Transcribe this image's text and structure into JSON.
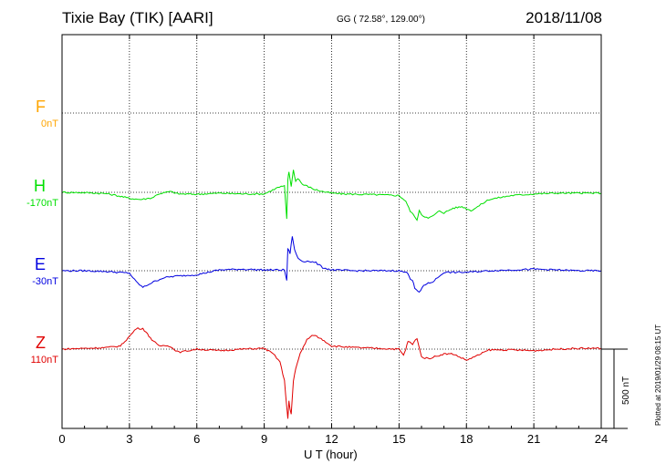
{
  "header": {
    "station": "Tixie Bay (TIK)  [AARI]",
    "coords": "GG ( 72.58°, 129.00°)",
    "date": "2018/11/08"
  },
  "footer": {
    "plotted": "Plotted at 2019/01/29 08:15 UT",
    "scale_label": "500 nT"
  },
  "chart_data": {
    "type": "line",
    "xlabel": "U T (hour)",
    "xlim": [
      0,
      24
    ],
    "xticks": [
      0,
      3,
      6,
      9,
      12,
      15,
      18,
      21,
      24
    ],
    "grid": true,
    "scale_bar_nT": 500,
    "series": [
      {
        "name": "F",
        "offset": "0nT",
        "color": "#ffa500",
        "values": []
      },
      {
        "name": "H",
        "offset": "-170nT",
        "color": "#00e000",
        "x": [
          0,
          1,
          2,
          2.6,
          3,
          3.5,
          4,
          4.3,
          4.8,
          5.2,
          6,
          7,
          8,
          9,
          9.6,
          9.9,
          10,
          10.05,
          10.1,
          10.2,
          10.3,
          10.4,
          10.5,
          10.7,
          10.9,
          11.2,
          11.6,
          12,
          12.5,
          13,
          14,
          15,
          15.3,
          15.5,
          15.7,
          15.8,
          15.9,
          16,
          16.3,
          16.6,
          16.8,
          17,
          17.4,
          17.8,
          18.2,
          18.5,
          19,
          20,
          21,
          22,
          23,
          24
        ],
        "y": [
          0,
          -2,
          -8,
          -25,
          -38,
          -45,
          -35,
          -10,
          5,
          -10,
          -12,
          -5,
          -10,
          -10,
          30,
          40,
          -170,
          80,
          130,
          40,
          140,
          70,
          90,
          50,
          40,
          20,
          5,
          -5,
          -10,
          -12,
          -15,
          -20,
          -55,
          -120,
          -150,
          -180,
          -110,
          -140,
          -165,
          -140,
          -115,
          -130,
          -100,
          -90,
          -115,
          -90,
          -45,
          -20,
          -10,
          -5,
          -5,
          -5
        ]
      },
      {
        "name": "E",
        "offset": "-30nT",
        "color": "#0000e0",
        "x": [
          0,
          1,
          2,
          3,
          3.3,
          3.6,
          4,
          4.5,
          5,
          6,
          7,
          8,
          9,
          9.5,
          9.9,
          10,
          10.05,
          10.15,
          10.25,
          10.35,
          10.5,
          10.7,
          11,
          11.3,
          11.6,
          12,
          13,
          14,
          15,
          15.4,
          15.5,
          15.6,
          15.7,
          15.9,
          16.1,
          16.5,
          17,
          18,
          19,
          20,
          21,
          22,
          23,
          24
        ],
        "y": [
          0,
          0,
          -5,
          -15,
          -70,
          -105,
          -75,
          -45,
          -35,
          -25,
          5,
          10,
          5,
          5,
          5,
          -60,
          140,
          110,
          220,
          130,
          80,
          60,
          60,
          50,
          20,
          5,
          0,
          0,
          0,
          -15,
          -50,
          -60,
          -110,
          -140,
          -90,
          -70,
          -10,
          -10,
          0,
          5,
          10,
          5,
          0,
          0
        ]
      },
      {
        "name": "Z",
        "offset": "110nT",
        "color": "#e00000",
        "x": [
          0,
          1,
          2,
          2.6,
          3,
          3.3,
          3.6,
          4,
          4.3,
          4.7,
          5.2,
          6,
          7,
          8,
          9,
          9.4,
          9.7,
          9.9,
          10,
          10.05,
          10.1,
          10.15,
          10.2,
          10.3,
          10.4,
          10.6,
          10.9,
          11.2,
          11.6,
          12,
          13,
          14,
          15,
          15.2,
          15.3,
          15.4,
          15.6,
          15.8,
          16,
          16.3,
          17,
          17.4,
          18,
          18.5,
          19,
          20,
          21,
          22,
          23,
          24
        ],
        "y": [
          0,
          5,
          10,
          20,
          80,
          130,
          130,
          60,
          20,
          25,
          -20,
          0,
          -10,
          0,
          5,
          -30,
          -80,
          -200,
          -360,
          -440,
          -330,
          -380,
          -410,
          -200,
          -120,
          -30,
          60,
          90,
          60,
          20,
          10,
          5,
          0,
          -40,
          0,
          50,
          30,
          70,
          -50,
          -60,
          -30,
          -30,
          -70,
          -40,
          -5,
          -5,
          -10,
          0,
          5,
          5
        ]
      }
    ]
  }
}
